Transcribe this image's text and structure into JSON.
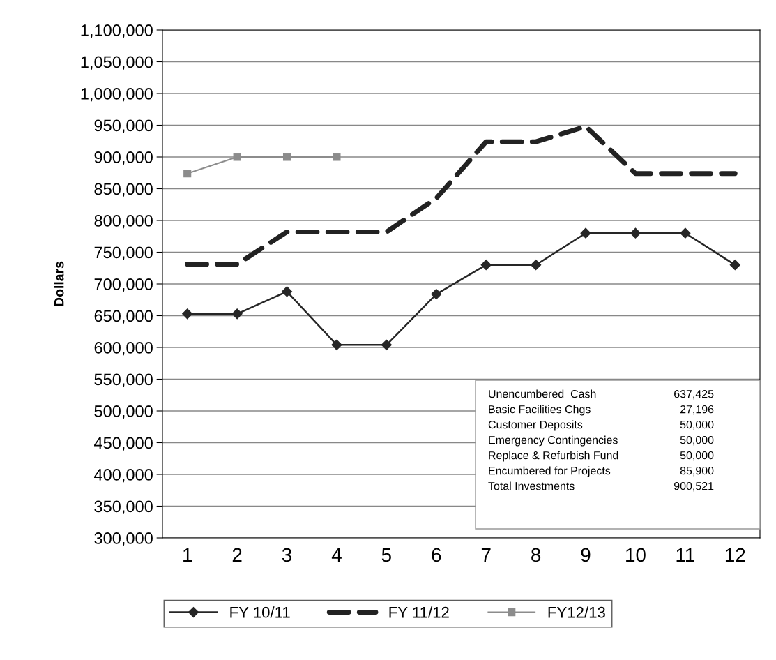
{
  "chart_data": {
    "type": "line",
    "ylabel": "Dollars",
    "categories": [
      "1",
      "2",
      "3",
      "4",
      "5",
      "6",
      "7",
      "8",
      "9",
      "10",
      "11",
      "12"
    ],
    "series": [
      {
        "name": "FY 10/11",
        "color": "#262626",
        "marker": "diamond",
        "line_style": "solid",
        "values": [
          653000,
          653000,
          688000,
          604000,
          604000,
          684000,
          730000,
          730000,
          780000,
          780000,
          780000,
          730000
        ]
      },
      {
        "name": "FY 11/12",
        "color": "#222222",
        "marker": "none",
        "line_style": "dashed",
        "values": [
          731000,
          731000,
          782000,
          782000,
          782000,
          835000,
          924000,
          924000,
          948000,
          874000,
          874000,
          874000
        ]
      },
      {
        "name": "FY12/13",
        "color": "#8c8c8c",
        "marker": "square",
        "line_style": "solid",
        "values": [
          874000,
          900000,
          900000,
          900000,
          null,
          null,
          null,
          null,
          null,
          null,
          null,
          null
        ]
      }
    ],
    "ylim": [
      300000,
      1100000
    ],
    "yticks": [
      {
        "value": 300000,
        "label": "300,000"
      },
      {
        "value": 350000,
        "label": "350,000"
      },
      {
        "value": 400000,
        "label": "400,000"
      },
      {
        "value": 450000,
        "label": "450,000"
      },
      {
        "value": 500000,
        "label": "500,000"
      },
      {
        "value": 550000,
        "label": "550,000"
      },
      {
        "value": 600000,
        "label": "600,000"
      },
      {
        "value": 650000,
        "label": "650,000"
      },
      {
        "value": 700000,
        "label": "700,000"
      },
      {
        "value": 750000,
        "label": "750,000"
      },
      {
        "value": 800000,
        "label": "800,000"
      },
      {
        "value": 850000,
        "label": "850,000"
      },
      {
        "value": 900000,
        "label": "900,000"
      },
      {
        "value": 950000,
        "label": "950,000"
      },
      {
        "value": 1000000,
        "label": "1,000,000"
      },
      {
        "value": 1050000,
        "label": "1,050,000"
      },
      {
        "value": 1100000,
        "label": "1,100,000"
      }
    ],
    "grid": "y",
    "legend": "bottom",
    "annotations": [
      "Unencumbered  Cash",
      "637,425",
      "Basic Facilities Chgs",
      "27,196",
      "Customer Deposits",
      "50,000",
      "Emergency Contingencies",
      "50,000",
      "Replace & Refurbish Fund",
      "50,000",
      "Encumbered for Projects",
      "85,900",
      "Total Investments",
      "900,521"
    ]
  }
}
